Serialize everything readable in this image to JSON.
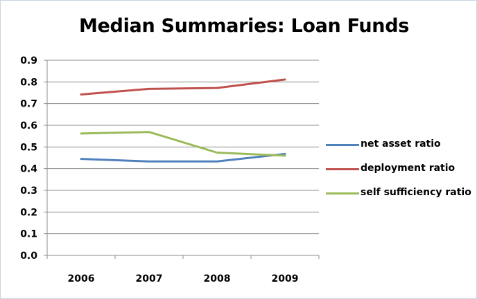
{
  "chart_data": {
    "type": "line",
    "title": "Median Summaries:  Loan Funds",
    "xlabel": "",
    "ylabel": "",
    "categories": [
      "2006",
      "2007",
      "2008",
      "2009"
    ],
    "ylim": [
      0,
      0.9
    ],
    "yticks": [
      "0.0",
      "0.1",
      "0.2",
      "0.3",
      "0.4",
      "0.5",
      "0.6",
      "0.7",
      "0.8",
      "0.9"
    ],
    "grid": true,
    "legend_position": "right",
    "series": [
      {
        "name": "net asset ratio",
        "color": "#4f81bd",
        "values": [
          0.445,
          0.433,
          0.433,
          0.468
        ]
      },
      {
        "name": "deployment ratio",
        "color": "#c0504d",
        "values": [
          0.742,
          0.768,
          0.772,
          0.811
        ]
      },
      {
        "name": "self sufficiency ratio",
        "color": "#9bbb59",
        "values": [
          0.562,
          0.569,
          0.474,
          0.46
        ]
      }
    ]
  }
}
